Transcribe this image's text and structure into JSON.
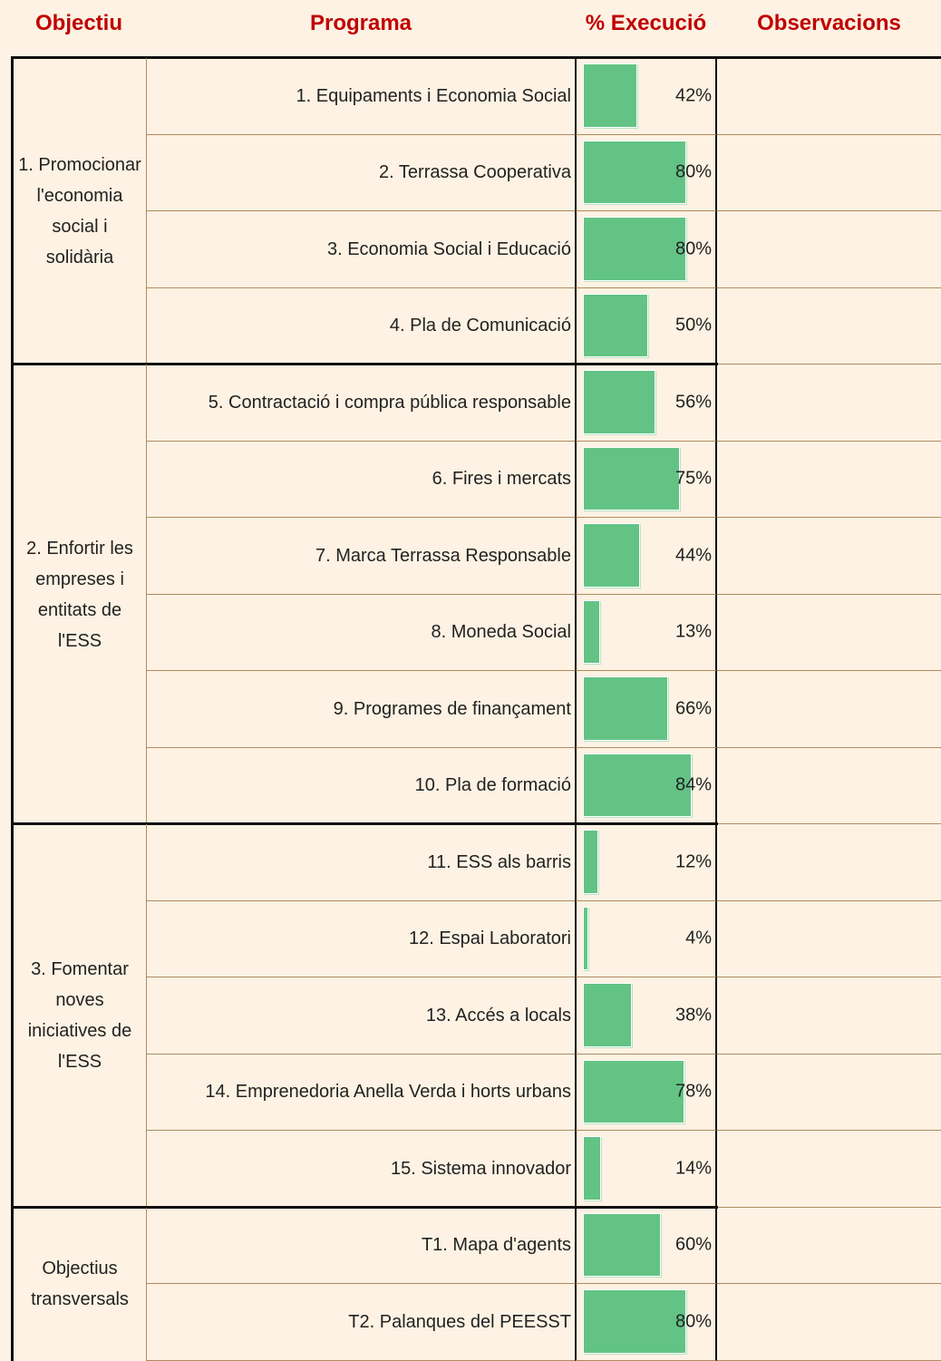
{
  "header": {
    "objective": "Objectiu",
    "program": "Programa",
    "execution": "% Execució",
    "observations": "Observacions"
  },
  "groups": [
    {
      "objective": "1. Promocionar l'economia social i solidària",
      "rows": [
        {
          "program": "1. Equipaments i Economia Social",
          "value": 42,
          "value_label": "42%"
        },
        {
          "program": "2. Terrassa Cooperativa",
          "value": 80,
          "value_label": "80%"
        },
        {
          "program": "3. Economia Social i Educació",
          "value": 80,
          "value_label": "80%"
        },
        {
          "program": "4. Pla de Comunicació",
          "value": 50,
          "value_label": "50%"
        }
      ]
    },
    {
      "objective": "2. Enfortir les empreses i entitats de l'ESS",
      "rows": [
        {
          "program": "5. Contractació i compra pública responsable",
          "value": 56,
          "value_label": "56%"
        },
        {
          "program": "6. Fires i mercats",
          "value": 75,
          "value_label": "75%"
        },
        {
          "program": "7. Marca Terrassa Responsable",
          "value": 44,
          "value_label": "44%"
        },
        {
          "program": "8. Moneda Social",
          "value": 13,
          "value_label": "13%"
        },
        {
          "program": "9. Programes de finançament",
          "value": 66,
          "value_label": "66%"
        },
        {
          "program": "10. Pla de formació",
          "value": 84,
          "value_label": "84%"
        }
      ]
    },
    {
      "objective": "3. Fomentar noves iniciatives de l'ESS",
      "rows": [
        {
          "program": "11. ESS als barris",
          "value": 12,
          "value_label": "12%"
        },
        {
          "program": "12. Espai Laboratori",
          "value": 4,
          "value_label": "4%"
        },
        {
          "program": "13.  Accés a locals",
          "value": 38,
          "value_label": "38%"
        },
        {
          "program": "14. Emprenedoria Anella Verda i horts urbans",
          "value": 78,
          "value_label": "78%"
        },
        {
          "program": "15. Sistema innovador",
          "value": 14,
          "value_label": "14%"
        }
      ]
    },
    {
      "objective": "Objectius transversals",
      "rows": [
        {
          "program": "T1. Mapa d'agents",
          "value": 60,
          "value_label": "60%"
        },
        {
          "program": "T2. Palanques del PEESST",
          "value": 80,
          "value_label": "80%"
        }
      ]
    }
  ]
}
